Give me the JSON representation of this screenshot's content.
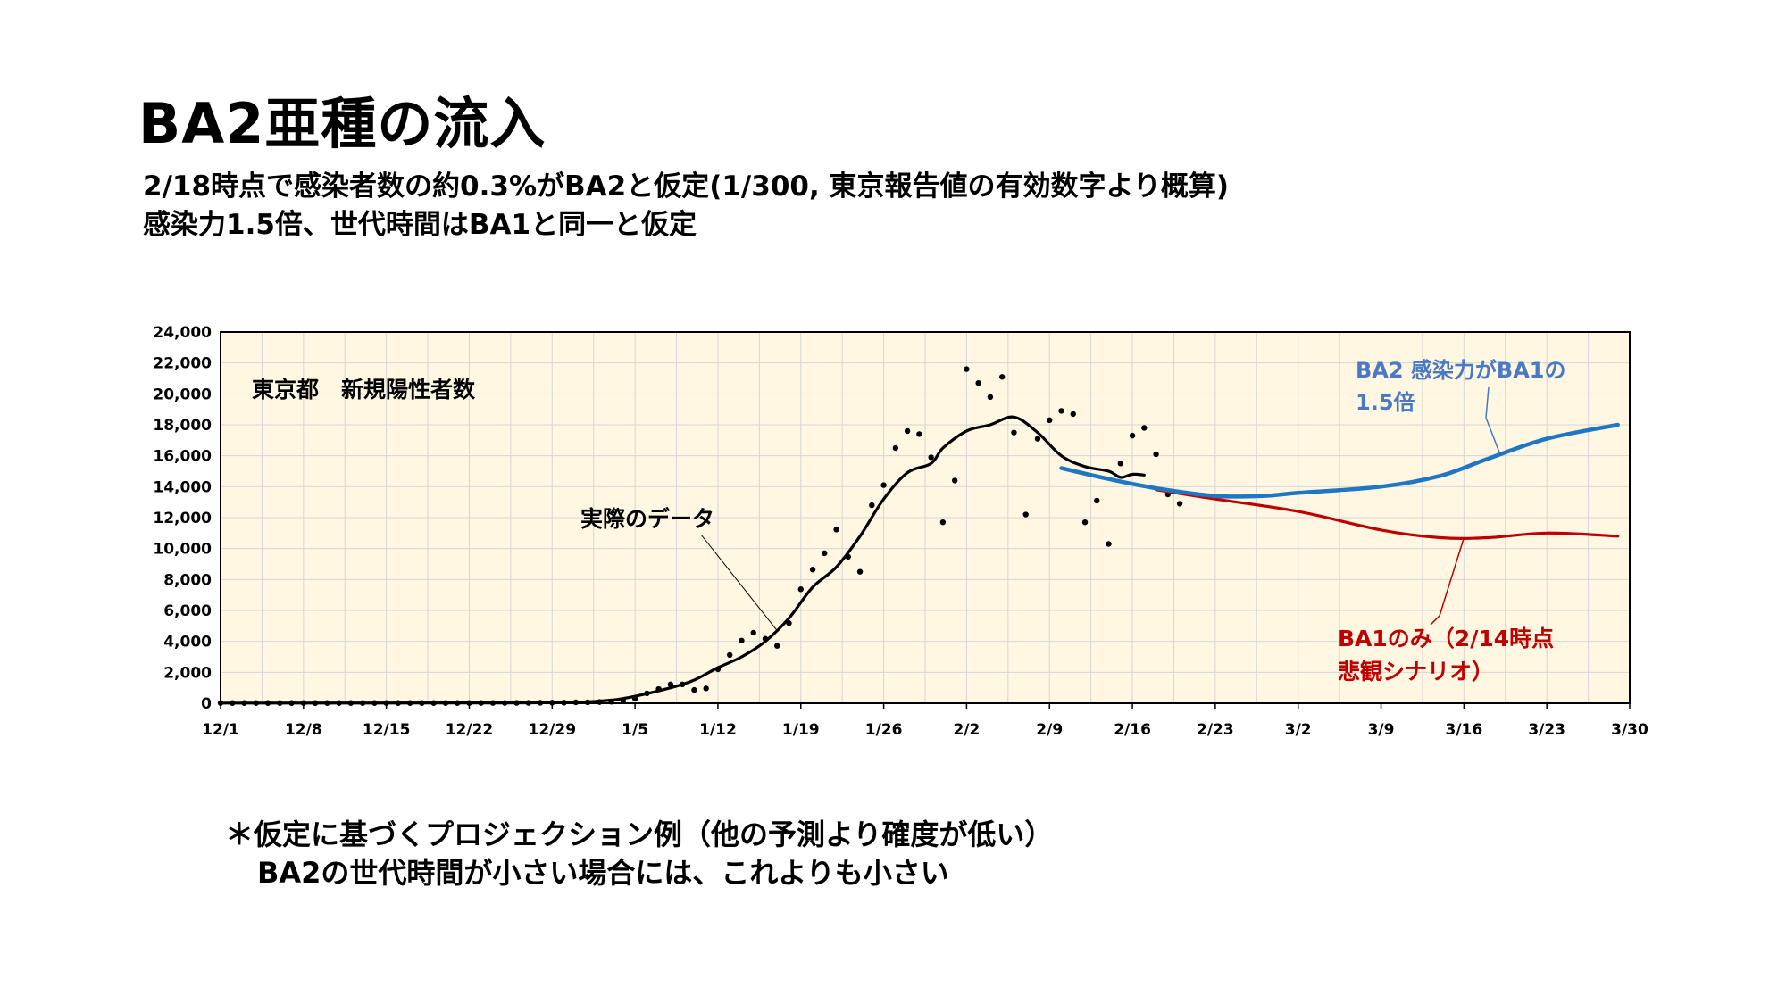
{
  "slide": {
    "title": "BA2亜種の流入",
    "subtitle_1": "2/18時点で感染者数の約0.3%がBA2と仮定(1/300, 東京報告値の有効数字より概算)",
    "subtitle_2": "感染力1.5倍、世代時間はBA1と同一と仮定",
    "note_1": "＊仮定に基づくプロジェクション例（他の予測より確度が低い）",
    "note_2": "BA2の世代時間が小さい場合には、これよりも小さい"
  },
  "colors": {
    "plot_bg": "#FFF7E2",
    "grid": "#D6D6D6",
    "actual": "#000000",
    "ba2": "#1F77C4",
    "ba1": "#C00000",
    "ba2_label": "#4A79C4"
  },
  "chart_data": {
    "type": "line",
    "inner_label": "東京都　新規陽性者数",
    "x_ticks": [
      "12/1",
      "12/8",
      "12/15",
      "12/22",
      "12/29",
      "1/5",
      "1/12",
      "1/19",
      "1/26",
      "2/2",
      "2/9",
      "2/16",
      "2/23",
      "3/2",
      "3/9",
      "3/16",
      "3/23",
      "3/30"
    ],
    "x_range": [
      "2021-12-01",
      "2022-03-30"
    ],
    "y_ticks": [
      "0",
      "2,000",
      "4,000",
      "6,000",
      "8,000",
      "10,000",
      "12,000",
      "14,000",
      "16,000",
      "18,000",
      "20,000",
      "22,000",
      "24,000"
    ],
    "ylim": [
      0,
      24000
    ],
    "grid": true,
    "annotations": {
      "actual": "実際のデータ",
      "ba2_line1": "BA2 感染力がBA1の",
      "ba2_line2": "1.5倍",
      "ba1_line1": "BA1のみ（2/14時点",
      "ba1_line2": "悲観シナリオ）"
    },
    "daily_points": [
      {
        "x": "2021-12-01",
        "y": 15
      },
      {
        "x": "2021-12-02",
        "y": 15
      },
      {
        "x": "2021-12-03",
        "y": 15
      },
      {
        "x": "2021-12-04",
        "y": 15
      },
      {
        "x": "2021-12-05",
        "y": 15
      },
      {
        "x": "2021-12-06",
        "y": 15
      },
      {
        "x": "2021-12-07",
        "y": 15
      },
      {
        "x": "2021-12-08",
        "y": 15
      },
      {
        "x": "2021-12-09",
        "y": 15
      },
      {
        "x": "2021-12-10",
        "y": 15
      },
      {
        "x": "2021-12-11",
        "y": 15
      },
      {
        "x": "2021-12-12",
        "y": 15
      },
      {
        "x": "2021-12-13",
        "y": 15
      },
      {
        "x": "2021-12-14",
        "y": 15
      },
      {
        "x": "2021-12-15",
        "y": 15
      },
      {
        "x": "2021-12-16",
        "y": 15
      },
      {
        "x": "2021-12-17",
        "y": 15
      },
      {
        "x": "2021-12-18",
        "y": 15
      },
      {
        "x": "2021-12-19",
        "y": 15
      },
      {
        "x": "2021-12-20",
        "y": 15
      },
      {
        "x": "2021-12-21",
        "y": 15
      },
      {
        "x": "2021-12-22",
        "y": 15
      },
      {
        "x": "2021-12-23",
        "y": 20
      },
      {
        "x": "2021-12-24",
        "y": 20
      },
      {
        "x": "2021-12-25",
        "y": 20
      },
      {
        "x": "2021-12-26",
        "y": 25
      },
      {
        "x": "2021-12-27",
        "y": 25
      },
      {
        "x": "2021-12-28",
        "y": 30
      },
      {
        "x": "2021-12-29",
        "y": 40
      },
      {
        "x": "2021-12-30",
        "y": 40
      },
      {
        "x": "2021-12-31",
        "y": 60
      },
      {
        "x": "2022-01-01",
        "y": 60
      },
      {
        "x": "2022-01-02",
        "y": 80
      },
      {
        "x": "2022-01-03",
        "y": 100
      },
      {
        "x": "2022-01-04",
        "y": 150
      },
      {
        "x": "2022-01-05",
        "y": 300
      },
      {
        "x": "2022-01-06",
        "y": 640
      },
      {
        "x": "2022-01-07",
        "y": 920
      },
      {
        "x": "2022-01-08",
        "y": 1220
      },
      {
        "x": "2022-01-09",
        "y": 1220
      },
      {
        "x": "2022-01-10",
        "y": 860
      },
      {
        "x": "2022-01-11",
        "y": 960
      },
      {
        "x": "2022-01-12",
        "y": 2200
      },
      {
        "x": "2022-01-13",
        "y": 3120
      },
      {
        "x": "2022-01-14",
        "y": 4050
      },
      {
        "x": "2022-01-15",
        "y": 4560
      },
      {
        "x": "2022-01-16",
        "y": 4170
      },
      {
        "x": "2022-01-17",
        "y": 3710
      },
      {
        "x": "2022-01-18",
        "y": 5180
      },
      {
        "x": "2022-01-19",
        "y": 7370
      },
      {
        "x": "2022-01-20",
        "y": 8640
      },
      {
        "x": "2022-01-21",
        "y": 9700
      },
      {
        "x": "2022-01-22",
        "y": 11230
      },
      {
        "x": "2022-01-23",
        "y": 9470
      },
      {
        "x": "2022-01-24",
        "y": 8500
      },
      {
        "x": "2022-01-25",
        "y": 12800
      },
      {
        "x": "2022-01-26",
        "y": 14100
      },
      {
        "x": "2022-01-27",
        "y": 16500
      },
      {
        "x": "2022-01-28",
        "y": 17600
      },
      {
        "x": "2022-01-29",
        "y": 17400
      },
      {
        "x": "2022-01-30",
        "y": 15900
      },
      {
        "x": "2022-01-31",
        "y": 11700
      },
      {
        "x": "2022-02-01",
        "y": 14400
      },
      {
        "x": "2022-02-02",
        "y": 21600
      },
      {
        "x": "2022-02-03",
        "y": 20700
      },
      {
        "x": "2022-02-04",
        "y": 19800
      },
      {
        "x": "2022-02-05",
        "y": 21100
      },
      {
        "x": "2022-02-06",
        "y": 17500
      },
      {
        "x": "2022-02-07",
        "y": 12200
      },
      {
        "x": "2022-02-08",
        "y": 17100
      },
      {
        "x": "2022-02-09",
        "y": 18300
      },
      {
        "x": "2022-02-10",
        "y": 18900
      },
      {
        "x": "2022-02-11",
        "y": 18700
      },
      {
        "x": "2022-02-12",
        "y": 11700
      },
      {
        "x": "2022-02-13",
        "y": 13100
      },
      {
        "x": "2022-02-14",
        "y": 10300
      },
      {
        "x": "2022-02-15",
        "y": 15500
      },
      {
        "x": "2022-02-16",
        "y": 17300
      },
      {
        "x": "2022-02-17",
        "y": 17800
      },
      {
        "x": "2022-02-18",
        "y": 16100
      },
      {
        "x": "2022-02-19",
        "y": 13500
      },
      {
        "x": "2022-02-20",
        "y": 12900
      }
    ],
    "series": [
      {
        "key": "actual",
        "points": [
          {
            "x": "2021-12-01",
            "y": 10
          },
          {
            "x": "2021-12-25",
            "y": 25
          },
          {
            "x": "2021-12-31",
            "y": 70
          },
          {
            "x": "2022-01-03",
            "y": 200
          },
          {
            "x": "2022-01-05",
            "y": 450
          },
          {
            "x": "2022-01-08",
            "y": 1000
          },
          {
            "x": "2022-01-10",
            "y": 1500
          },
          {
            "x": "2022-01-12",
            "y": 2300
          },
          {
            "x": "2022-01-14",
            "y": 3000
          },
          {
            "x": "2022-01-16",
            "y": 4000
          },
          {
            "x": "2022-01-18",
            "y": 5500
          },
          {
            "x": "2022-01-20",
            "y": 7500
          },
          {
            "x": "2022-01-22",
            "y": 8800
          },
          {
            "x": "2022-01-24",
            "y": 10800
          },
          {
            "x": "2022-01-26",
            "y": 13200
          },
          {
            "x": "2022-01-28",
            "y": 14900
          },
          {
            "x": "2022-01-30",
            "y": 15500
          },
          {
            "x": "2022-01-31",
            "y": 16500
          },
          {
            "x": "2022-02-02",
            "y": 17600
          },
          {
            "x": "2022-02-04",
            "y": 18000
          },
          {
            "x": "2022-02-06",
            "y": 18500
          },
          {
            "x": "2022-02-08",
            "y": 17500
          },
          {
            "x": "2022-02-10",
            "y": 16000
          },
          {
            "x": "2022-02-12",
            "y": 15300
          },
          {
            "x": "2022-02-14",
            "y": 15000
          },
          {
            "x": "2022-02-15",
            "y": 14600
          },
          {
            "x": "2022-02-16",
            "y": 14800
          },
          {
            "x": "2022-02-17",
            "y": 14750
          }
        ]
      },
      {
        "key": "ba1_only",
        "points": [
          {
            "x": "2022-02-18",
            "y": 13800
          },
          {
            "x": "2022-02-23",
            "y": 13200
          },
          {
            "x": "2022-03-02",
            "y": 12400
          },
          {
            "x": "2022-03-09",
            "y": 11200
          },
          {
            "x": "2022-03-14",
            "y": 10700
          },
          {
            "x": "2022-03-18",
            "y": 10700
          },
          {
            "x": "2022-03-23",
            "y": 11000
          },
          {
            "x": "2022-03-29",
            "y": 10800
          }
        ]
      },
      {
        "key": "ba2",
        "points": [
          {
            "x": "2022-02-10",
            "y": 15200
          },
          {
            "x": "2022-02-14",
            "y": 14500
          },
          {
            "x": "2022-02-18",
            "y": 13900
          },
          {
            "x": "2022-02-23",
            "y": 13400
          },
          {
            "x": "2022-02-27",
            "y": 13400
          },
          {
            "x": "2022-03-02",
            "y": 13600
          },
          {
            "x": "2022-03-09",
            "y": 14000
          },
          {
            "x": "2022-03-14",
            "y": 14700
          },
          {
            "x": "2022-03-18",
            "y": 15800
          },
          {
            "x": "2022-03-23",
            "y": 17100
          },
          {
            "x": "2022-03-29",
            "y": 18000
          }
        ]
      }
    ]
  }
}
